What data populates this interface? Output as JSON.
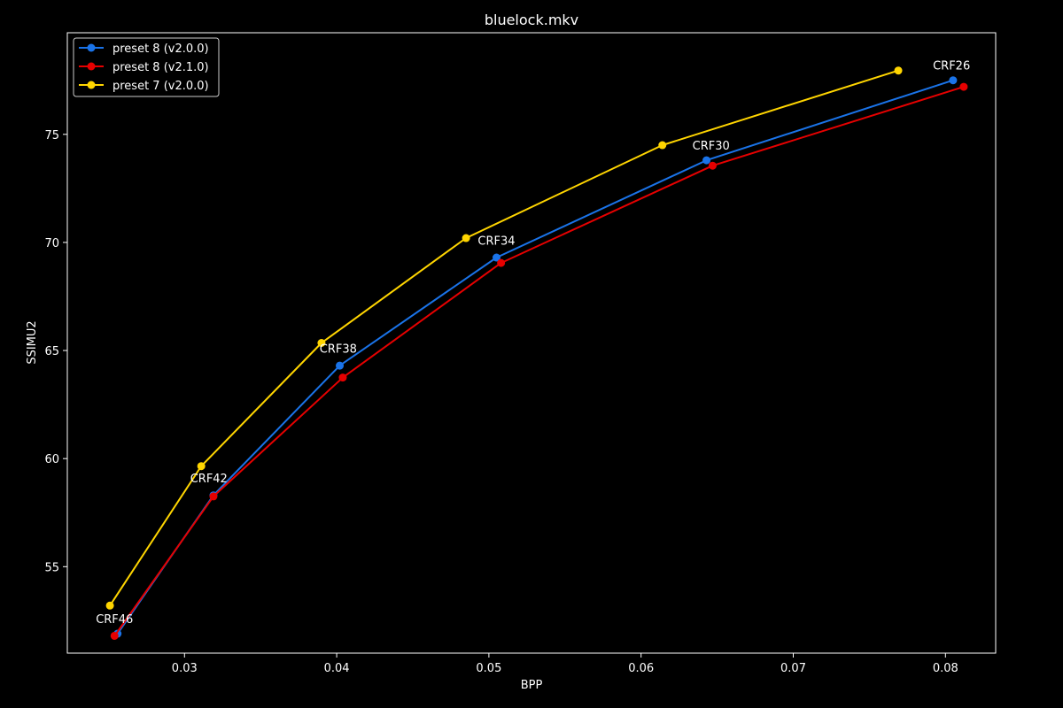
{
  "chart_data": {
    "type": "line",
    "title": "bluelock.mkv",
    "xlabel": "BPP",
    "ylabel": "SSIMU2",
    "xlim": [
      0.0223,
      0.0833
    ],
    "ylim": [
      51.0,
      79.7
    ],
    "x_ticks": [
      0.03,
      0.04,
      0.05,
      0.06,
      0.07,
      0.08
    ],
    "x_tick_labels": [
      "0.03",
      "0.04",
      "0.05",
      "0.06",
      "0.07",
      "0.08"
    ],
    "y_ticks": [
      55,
      60,
      65,
      70,
      75
    ],
    "y_tick_labels": [
      "55",
      "60",
      "65",
      "70",
      "75"
    ],
    "grid": false,
    "legend_position": "top-left",
    "series": [
      {
        "name": "preset 8 (v2.0.0)",
        "color": "#1a73e8",
        "points": [
          [
            0.0256,
            51.9
          ],
          [
            0.0319,
            58.3
          ],
          [
            0.0402,
            64.3
          ],
          [
            0.0505,
            69.3
          ],
          [
            0.0643,
            73.8
          ],
          [
            0.0805,
            77.5
          ]
        ]
      },
      {
        "name": "preset 8 (v2.1.0)",
        "color": "#e60000",
        "points": [
          [
            0.0254,
            51.8
          ],
          [
            0.0319,
            58.25
          ],
          [
            0.0404,
            63.75
          ],
          [
            0.0508,
            69.05
          ],
          [
            0.0647,
            73.55
          ],
          [
            0.0812,
            77.2
          ]
        ]
      },
      {
        "name": "preset 7 (v2.0.0)",
        "color": "#ffd500",
        "points": [
          [
            0.0251,
            53.2
          ],
          [
            0.0311,
            59.65
          ],
          [
            0.039,
            65.35
          ],
          [
            0.0485,
            70.2
          ],
          [
            0.0614,
            74.5
          ],
          [
            0.0769,
            77.95
          ]
        ]
      }
    ],
    "annotations": [
      {
        "text": "CRF46",
        "x": 0.0254,
        "y": 52.4
      },
      {
        "text": "CRF42",
        "x": 0.0316,
        "y": 58.9
      },
      {
        "text": "CRF38",
        "x": 0.0401,
        "y": 64.9
      },
      {
        "text": "CRF34",
        "x": 0.0505,
        "y": 69.9
      },
      {
        "text": "CRF30",
        "x": 0.0646,
        "y": 74.3
      },
      {
        "text": "CRF26",
        "x": 0.0804,
        "y": 78.0
      }
    ]
  }
}
